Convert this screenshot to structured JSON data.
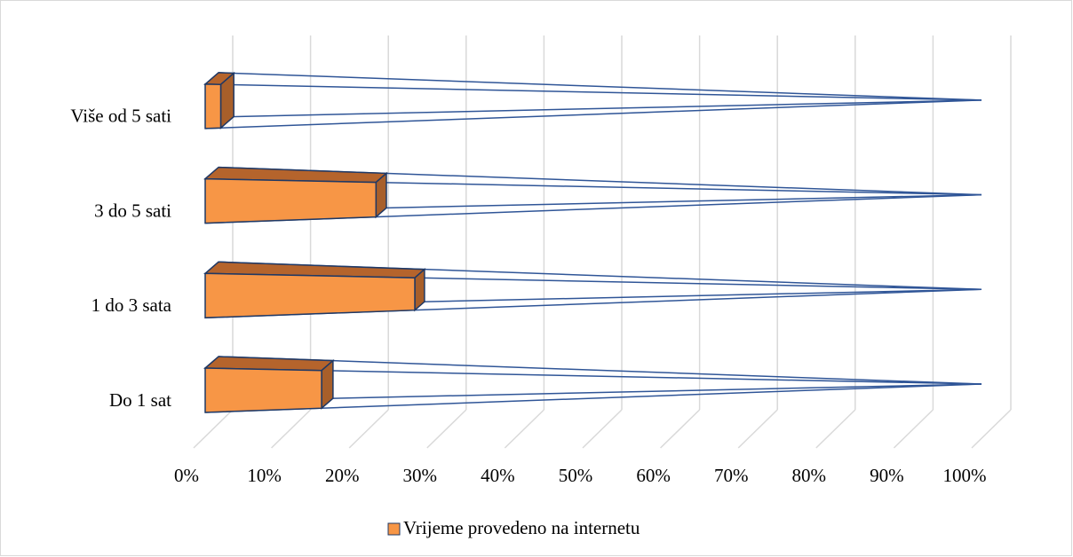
{
  "chart_data": {
    "type": "pyramid-bar",
    "categories": [
      "Do 1 sat",
      "1 do 3 sata",
      "3 do 5 sati",
      "Više od 5 sati"
    ],
    "series": [
      {
        "name": "Vrijeme provedeno na internetu",
        "color": "#f79646",
        "values": [
          15,
          27,
          22,
          2
        ]
      }
    ],
    "xlim": [
      0,
      100
    ],
    "xticks": [
      {
        "value": 0,
        "label": "0%"
      },
      {
        "value": 10,
        "label": "10%"
      },
      {
        "value": 20,
        "label": "20%"
      },
      {
        "value": 30,
        "label": "30%"
      },
      {
        "value": 40,
        "label": "40%"
      },
      {
        "value": 50,
        "label": "50%"
      },
      {
        "value": 60,
        "label": "60%"
      },
      {
        "value": 70,
        "label": "70%"
      },
      {
        "value": 80,
        "label": "80%"
      },
      {
        "value": 90,
        "label": "90%"
      },
      {
        "value": 100,
        "label": "100%"
      }
    ],
    "grid": true,
    "legend": "bottom"
  }
}
